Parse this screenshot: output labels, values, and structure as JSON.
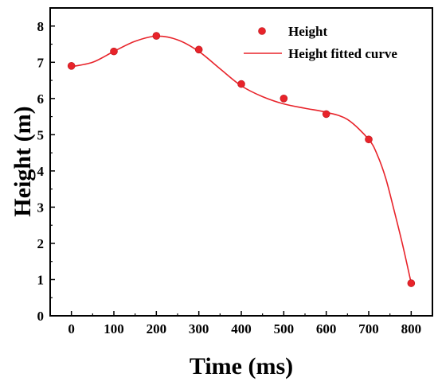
{
  "chart_data": {
    "type": "line",
    "xlabel": "Time (ms)",
    "ylabel": "Height (m)",
    "xlim": [
      -50,
      850
    ],
    "ylim": [
      0,
      8.5
    ],
    "xticks": [
      0,
      100,
      200,
      300,
      400,
      500,
      600,
      700,
      800
    ],
    "yticks": [
      0,
      1,
      2,
      3,
      4,
      5,
      6,
      7,
      8
    ],
    "legend_position": "top-right",
    "series": [
      {
        "name": "Height",
        "kind": "scatter",
        "color": "#e8232a",
        "x": [
          0,
          100,
          200,
          300,
          400,
          500,
          600,
          700,
          800
        ],
        "y": [
          6.9,
          7.3,
          7.73,
          7.35,
          6.4,
          6.0,
          5.57,
          4.87,
          0.9
        ]
      },
      {
        "name": "Height fitted curve",
        "kind": "line",
        "color": "#e8232a",
        "x": [
          0,
          50,
          100,
          150,
          200,
          250,
          300,
          350,
          400,
          450,
          500,
          550,
          600,
          650,
          700,
          720,
          740,
          760,
          780,
          800
        ],
        "y": [
          6.88,
          7.0,
          7.3,
          7.58,
          7.72,
          7.62,
          7.3,
          6.82,
          6.35,
          6.05,
          5.85,
          5.73,
          5.62,
          5.42,
          4.87,
          4.45,
          3.8,
          2.9,
          1.95,
          0.9
        ]
      }
    ]
  }
}
